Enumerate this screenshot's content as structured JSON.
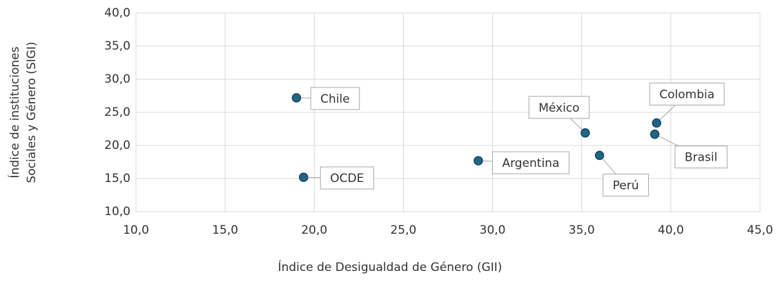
{
  "chart_data": {
    "type": "scatter",
    "x_label": "Índice de Desigualdad de Género (GII)",
    "y_label": [
      "Índice de instituciones",
      "Sociales y Género (SIGI)"
    ],
    "series": [
      {
        "color": "#1f6685",
        "labels": [
          "Chile",
          "OCDE",
          "Argentina",
          "México",
          "Perú",
          "Colombia",
          "Brasil"
        ],
        "x": [
          19.0,
          19.4,
          29.2,
          35.2,
          36.0,
          39.2,
          39.1
        ],
        "values": [
          27.2,
          15.2,
          17.7,
          21.9,
          18.5,
          23.4,
          21.7
        ]
      }
    ],
    "xlim": [
      10,
      45
    ],
    "xticks": [
      {
        "value": 10,
        "label": "10,0"
      },
      {
        "value": 15,
        "label": "15,0"
      },
      {
        "value": 20,
        "label": "20,0"
      },
      {
        "value": 25,
        "label": "25,0"
      },
      {
        "value": 30,
        "label": "30,0"
      },
      {
        "value": 35,
        "label": "35,0"
      },
      {
        "value": 40,
        "label": "40,0"
      },
      {
        "value": 45,
        "label": "45,0"
      }
    ],
    "ylim": [
      10,
      40
    ],
    "yticks": [
      {
        "value": 10,
        "label": "10,0"
      },
      {
        "value": 15,
        "label": "15,0"
      },
      {
        "value": 20,
        "label": "20,0"
      },
      {
        "value": 25,
        "label": "25,0"
      },
      {
        "value": 30,
        "label": "30,0"
      },
      {
        "value": 35,
        "label": "35,0"
      },
      {
        "value": 40,
        "label": "40,0"
      }
    ],
    "grid": true
  }
}
